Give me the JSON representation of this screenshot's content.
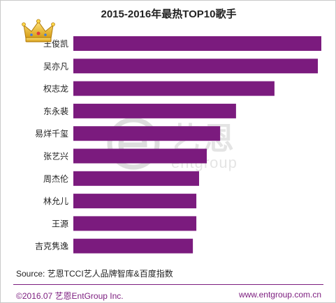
{
  "chart_data": {
    "type": "bar",
    "orientation": "horizontal",
    "title": "2015-2016年最热TOP10歌手",
    "categories": [
      "王俊凯",
      "吴亦凡",
      "权志龙",
      "东永裴",
      "易烊千玺",
      "张艺兴",
      "周杰伦",
      "林允儿",
      "王源",
      "吉克隽逸"
    ],
    "values": [
      100,
      98.6,
      81.1,
      65.6,
      59.2,
      53.8,
      50.7,
      49.6,
      49.6,
      48.2
    ],
    "xlim": [
      0,
      100
    ],
    "grid": false,
    "legend": "none",
    "bar_color": "#7b1b7e"
  },
  "source": "Source: 艺恩TCCI艺人品牌智库&百度指数",
  "footer": {
    "copyright": "©2016.07 艺恩EntGroup Inc.",
    "website": "www.entgroup.com.cn"
  },
  "watermark": {
    "brand_cn": "艺恩",
    "brand_en": "entgroup"
  },
  "icons": {
    "top_rank": "crown-icon",
    "watermark": "entgroup-logo-icon"
  }
}
